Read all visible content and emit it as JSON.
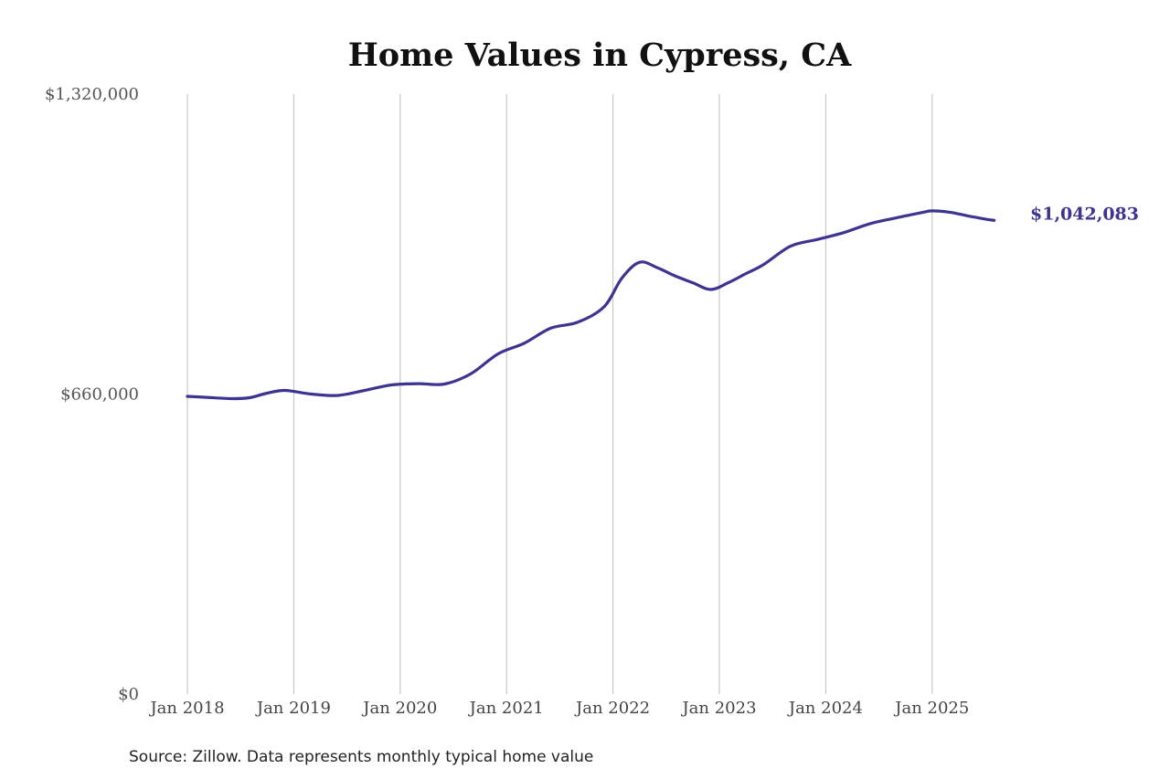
{
  "chart_data": {
    "type": "line",
    "title": "Home Values in Cypress, CA",
    "source": "Source: Zillow. Data represents monthly typical home value",
    "ylim": [
      0,
      1320000
    ],
    "y_ticks": [
      0,
      660000,
      1320000
    ],
    "y_tick_labels": [
      "$0",
      "$660,000",
      "$1,320,000"
    ],
    "x_ticks": [
      2018,
      2019,
      2020,
      2021,
      2022,
      2023,
      2024,
      2025
    ],
    "x_tick_labels": [
      "Jan 2018",
      "Jan 2019",
      "Jan 2020",
      "Jan 2021",
      "Jan 2022",
      "Jan 2023",
      "Jan 2024",
      "Jan 2025"
    ],
    "grid": "vertical",
    "line_color": "#3d3491",
    "end_label": "$1,042,083",
    "series": [
      {
        "x": [
          "2018-01",
          "2018-03",
          "2018-06",
          "2018-08",
          "2018-10",
          "2018-12",
          "2019-03",
          "2019-06",
          "2019-09",
          "2019-12",
          "2020-03",
          "2020-06",
          "2020-09",
          "2020-12",
          "2021-03",
          "2021-06",
          "2021-09",
          "2021-12",
          "2022-02",
          "2022-04",
          "2022-06",
          "2022-08",
          "2022-10",
          "2022-12",
          "2023-02",
          "2023-04",
          "2023-06",
          "2023-09",
          "2023-12",
          "2024-03",
          "2024-06",
          "2024-09",
          "2024-12",
          "2025-01",
          "2025-03",
          "2025-05",
          "2025-07",
          "2025-08"
        ],
        "values": [
          655000,
          653000,
          650000,
          652000,
          662000,
          668000,
          660000,
          657000,
          668000,
          680000,
          683000,
          682000,
          705000,
          748000,
          772000,
          805000,
          818000,
          852000,
          915000,
          950000,
          938000,
          920000,
          905000,
          890000,
          905000,
          925000,
          945000,
          985000,
          1000000,
          1015000,
          1035000,
          1048000,
          1060000,
          1063000,
          1060000,
          1052000,
          1045000,
          1042083
        ]
      }
    ]
  }
}
